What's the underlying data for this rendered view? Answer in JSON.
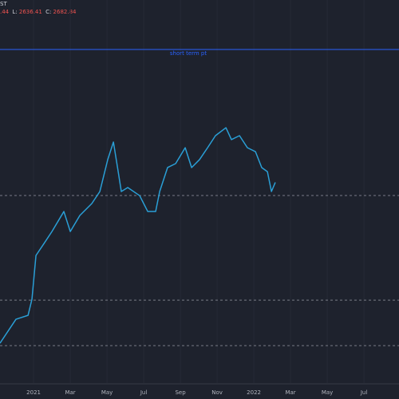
{
  "header": {
    "symbol": "ST",
    "high_fragment": ".44",
    "low_label": "L:",
    "low": "2636.41",
    "close_label": "C:",
    "close": "2682.84"
  },
  "chart_data": {
    "type": "line",
    "x": [
      -1.83,
      -0.96,
      -0.3,
      -0.09,
      0.13,
      0.57,
      1.0,
      1.65,
      2.0,
      2.52,
      3.17,
      3.61,
      4.04,
      4.35,
      4.61,
      4.78,
      5.13,
      5.78,
      6.22,
      6.65,
      6.87,
      7.3,
      7.74,
      8.26,
      8.61,
      9.04,
      9.48,
      9.91,
      10.48,
      10.78,
      11.22,
      11.65,
      12.09,
      12.43,
      12.74,
      12.96,
      13.17
    ],
    "series": [
      {
        "color": "#2a9fd6",
        "values": [
          1750,
          1889,
          1912,
          2005,
          2259,
          2329,
          2398,
          2514,
          2398,
          2491,
          2560,
          2630,
          2815,
          2917,
          2745,
          2630,
          2653,
          2606,
          2514,
          2514,
          2630,
          2769,
          2792,
          2884,
          2769,
          2815,
          2884,
          2954,
          3000,
          2931,
          2954,
          2884,
          2861,
          2769,
          2745,
          2630,
          2683
        ]
      }
    ],
    "xlim": [
      -1.83,
      19.91
    ],
    "ylim": [
      1519,
      3741
    ],
    "xticks": [
      {
        "value": 0,
        "label": "2021"
      },
      {
        "value": 2,
        "label": "Mar"
      },
      {
        "value": 4,
        "label": "May"
      },
      {
        "value": 6,
        "label": "Jul"
      },
      {
        "value": 8,
        "label": "Sep"
      },
      {
        "value": 10,
        "label": "Nov"
      },
      {
        "value": 12,
        "label": "2022"
      },
      {
        "value": 14,
        "label": "Mar"
      },
      {
        "value": 16,
        "label": "May"
      },
      {
        "value": 18,
        "label": "Jul"
      }
    ],
    "grid": true,
    "levels": [
      {
        "value": 3454,
        "style": "solid",
        "color": "#2962ff",
        "label": "short term pt"
      },
      {
        "value": 2607,
        "style": "dashed",
        "color": "#787b86"
      },
      {
        "value": 2000,
        "style": "dashed",
        "color": "#787b86"
      },
      {
        "value": 1736,
        "style": "dashed",
        "color": "#787b86"
      }
    ]
  }
}
